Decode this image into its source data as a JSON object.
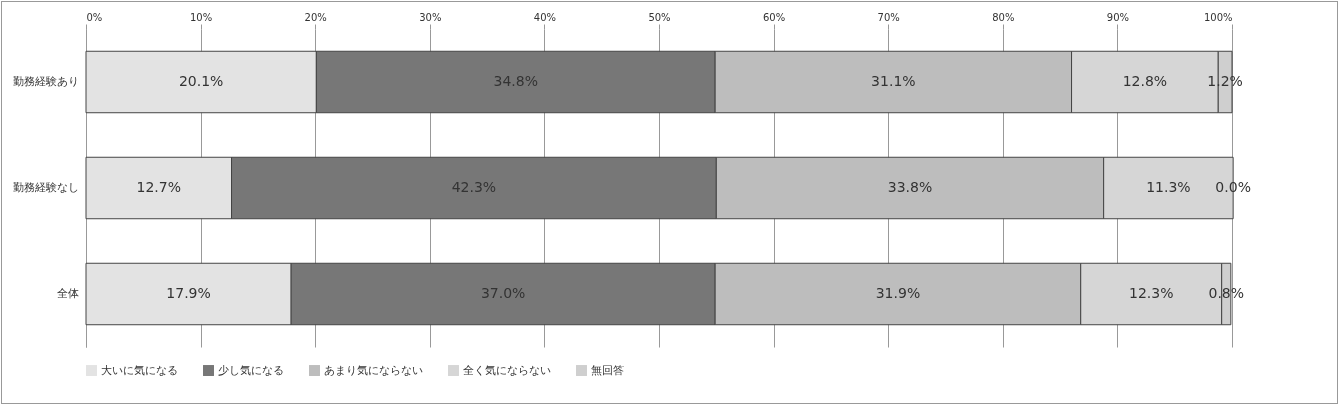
{
  "chart_data": {
    "type": "bar",
    "orientation": "horizontal",
    "stacked": true,
    "categories": [
      "勤務経験あり",
      "勤務経験なし",
      "全体"
    ],
    "series": [
      {
        "name": "大いに気になる",
        "color": "#e3e3e3",
        "values": [
          20.1,
          12.7,
          17.9
        ],
        "value_labels": [
          "20.1%",
          "12.7%",
          "17.9%"
        ]
      },
      {
        "name": "少し気になる",
        "color": "#777777",
        "values": [
          34.8,
          42.3,
          37.0
        ],
        "value_labels": [
          "34.8%",
          "42.3%",
          "37.0%"
        ]
      },
      {
        "name": "あまり気にならない",
        "color": "#bdbdbd",
        "values": [
          31.1,
          33.8,
          31.9
        ],
        "value_labels": [
          "31.1%",
          "33.8%",
          "31.9%"
        ]
      },
      {
        "name": "全く気にならない",
        "color": "#d6d6d6",
        "values": [
          12.8,
          11.3,
          12.3
        ],
        "value_labels": [
          "12.8%",
          "11.3%",
          "12.3%"
        ]
      },
      {
        "name": "無回答",
        "color": "#cfcfcf",
        "values": [
          1.2,
          0.0,
          0.8
        ],
        "value_labels": [
          "1.2%",
          "0.0%",
          "0.8%"
        ]
      }
    ],
    "xlim": [
      0,
      100
    ],
    "xticks": [
      {
        "value": 0,
        "label": "0%"
      },
      {
        "value": 10,
        "label": "10%"
      },
      {
        "value": 20,
        "label": "20%"
      },
      {
        "value": 30,
        "label": "30%"
      },
      {
        "value": 40,
        "label": "40%"
      },
      {
        "value": 50,
        "label": "50%"
      },
      {
        "value": 60,
        "label": "60%"
      },
      {
        "value": 70,
        "label": "70%"
      },
      {
        "value": 80,
        "label": "80%"
      },
      {
        "value": 90,
        "label": "90%"
      },
      {
        "value": 100,
        "label": "100%"
      }
    ],
    "grid": "x",
    "legend": "bottom"
  }
}
